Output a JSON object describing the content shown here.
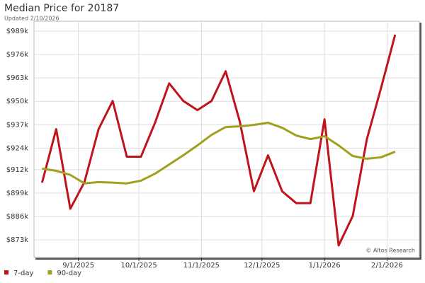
{
  "chart_data": {
    "type": "line",
    "title": "Median Price for 20187",
    "subtitle": "Updated 2/10/2026",
    "watermark": "© Altos Research",
    "x": [
      "2025-08-14",
      "2025-08-21",
      "2025-08-28",
      "2025-09-04",
      "2025-09-11",
      "2025-09-18",
      "2025-09-25",
      "2025-10-02",
      "2025-10-09",
      "2025-10-16",
      "2025-10-23",
      "2025-10-30",
      "2025-11-06",
      "2025-11-13",
      "2025-11-20",
      "2025-11-27",
      "2025-12-04",
      "2025-12-11",
      "2025-12-18",
      "2025-12-25",
      "2026-01-01",
      "2026-01-08",
      "2026-01-15",
      "2026-01-22",
      "2026-01-29",
      "2026-02-05"
    ],
    "series": [
      {
        "name": "7-day",
        "color": "#c0141c",
        "values": [
          904800,
          934500,
          890300,
          905100,
          934500,
          950200,
          919200,
          919200,
          938100,
          960000,
          950200,
          945100,
          950200,
          966700,
          938800,
          900000,
          920000,
          900000,
          893400,
          893400,
          940000,
          869900,
          886300,
          929000,
          957300,
          987000
        ]
      },
      {
        "name": "90-day",
        "color": "#a0a01e",
        "values": [
          912600,
          911400,
          909100,
          904400,
          905100,
          904800,
          904400,
          905900,
          909800,
          914900,
          920000,
          925500,
          931400,
          935700,
          936100,
          936900,
          938100,
          935300,
          931000,
          929000,
          930600,
          925500,
          919600,
          918100,
          918900,
          922000
        ]
      }
    ],
    "xlim": [
      "2025-08-10",
      "2026-02-17"
    ],
    "xticks": [
      {
        "value": "2025-09-01",
        "label": "9/1/2025"
      },
      {
        "value": "2025-10-01",
        "label": "10/1/2025"
      },
      {
        "value": "2025-11-01",
        "label": "11/1/2025"
      },
      {
        "value": "2025-12-01",
        "label": "12/1/2025"
      },
      {
        "value": "2026-01-01",
        "label": "1/1/2026"
      },
      {
        "value": "2026-02-01",
        "label": "2/1/2026"
      }
    ],
    "ylim": [
      863200,
      994500
    ],
    "yticks": [
      {
        "value": 873000,
        "label": "$873k"
      },
      {
        "value": 886000,
        "label": "$886k"
      },
      {
        "value": 899000,
        "label": "$899k"
      },
      {
        "value": 912000,
        "label": "$912k"
      },
      {
        "value": 924000,
        "label": "$924k"
      },
      {
        "value": 937000,
        "label": "$937k"
      },
      {
        "value": 950000,
        "label": "$950k"
      },
      {
        "value": 963000,
        "label": "$963k"
      },
      {
        "value": 976000,
        "label": "$976k"
      },
      {
        "value": 989000,
        "label": "$989k"
      }
    ],
    "grid": true
  }
}
